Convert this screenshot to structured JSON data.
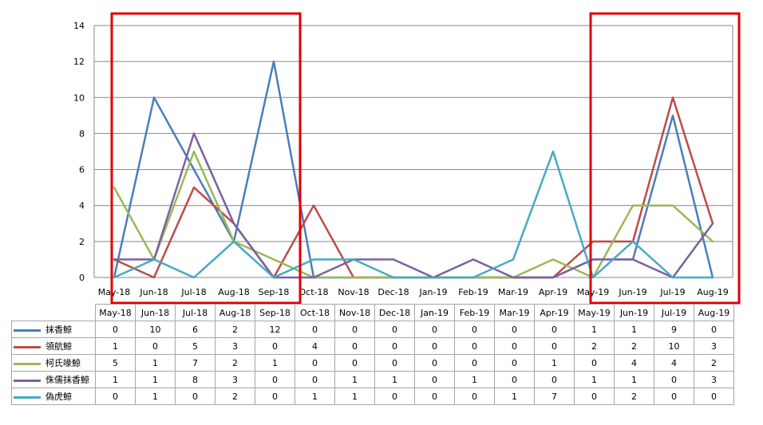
{
  "chart_data": {
    "type": "line",
    "categories": [
      "May-18",
      "Jun-18",
      "Jul-18",
      "Aug-18",
      "Sep-18",
      "Oct-18",
      "Nov-18",
      "Dec-18",
      "Jan-19",
      "Feb-19",
      "Mar-19",
      "Apr-19",
      "May-19",
      "Jun-19",
      "Jul-19",
      "Aug-19"
    ],
    "series": [
      {
        "name": "抹香鯨",
        "color": "#4a7ebb",
        "values": [
          0,
          10,
          6,
          2,
          12,
          0,
          0,
          0,
          0,
          0,
          0,
          0,
          1,
          1,
          9,
          0
        ]
      },
      {
        "name": "領航鯨",
        "color": "#be4b48",
        "values": [
          1,
          0,
          5,
          3,
          0,
          4,
          0,
          0,
          0,
          0,
          0,
          0,
          2,
          2,
          10,
          3
        ]
      },
      {
        "name": "柯氏喙鯨",
        "color": "#98b954",
        "values": [
          5,
          1,
          7,
          2,
          1,
          0,
          0,
          0,
          0,
          0,
          0,
          1,
          0,
          4,
          4,
          2
        ]
      },
      {
        "name": "侏儒抹香鯨",
        "color": "#7d60a0",
        "values": [
          1,
          1,
          8,
          3,
          0,
          0,
          1,
          1,
          0,
          1,
          0,
          0,
          1,
          1,
          0,
          3
        ]
      },
      {
        "name": "偽虎鯨",
        "color": "#46aac5",
        "values": [
          0,
          1,
          0,
          2,
          0,
          1,
          1,
          0,
          0,
          0,
          1,
          7,
          0,
          2,
          0,
          0
        ]
      }
    ],
    "ylim": [
      0,
      14
    ],
    "yticks": [
      0,
      2,
      4,
      6,
      8,
      10,
      12,
      14
    ],
    "grid": true,
    "legend": "data-table",
    "highlight_boxes": [
      {
        "from": "May-18",
        "to": "Sep-18",
        "color": "#e00000"
      },
      {
        "from": "May-19",
        "to": "Aug-19",
        "color": "#e00000"
      }
    ]
  }
}
